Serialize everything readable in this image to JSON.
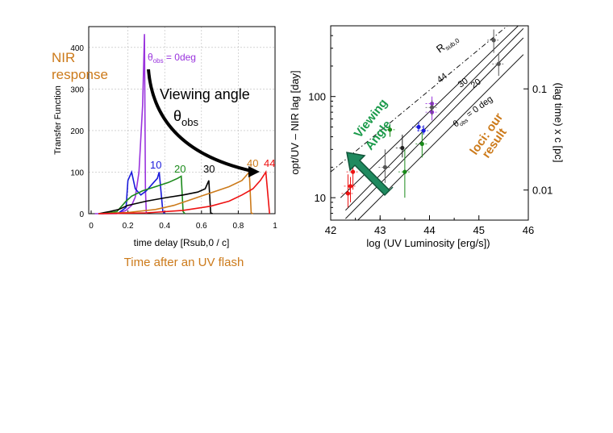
{
  "chart_data": [
    {
      "type": "line",
      "title": "",
      "ylabel": "Transfer Function",
      "xlabel": "time delay [Rsub,0 / c]",
      "xlim": [
        0,
        1
      ],
      "ylim": [
        0,
        450
      ],
      "x_ticks": [
        "0",
        "0.2",
        "0.4",
        "0.6",
        "0.8",
        "1"
      ],
      "y_ticks": [
        "0",
        "100",
        "200",
        "300",
        "400"
      ],
      "series": [
        {
          "name": "θobs = 0deg",
          "color": "#9933dd",
          "points": [
            [
              0.02,
              0
            ],
            [
              0.14,
              0
            ],
            [
              0.19,
              8
            ],
            [
              0.22,
              20
            ],
            [
              0.24,
              40
            ],
            [
              0.26,
              100
            ],
            [
              0.28,
              260
            ],
            [
              0.29,
              432
            ],
            [
              0.295,
              60
            ],
            [
              0.3,
              0
            ]
          ]
        },
        {
          "name": "10",
          "color": "#1a1adb",
          "points": [
            [
              0.05,
              0
            ],
            [
              0.15,
              2
            ],
            [
              0.19,
              15
            ],
            [
              0.2,
              80
            ],
            [
              0.22,
              100
            ],
            [
              0.24,
              60
            ],
            [
              0.27,
              45
            ],
            [
              0.3,
              55
            ],
            [
              0.34,
              75
            ],
            [
              0.36,
              85
            ],
            [
              0.37,
              100
            ],
            [
              0.39,
              5
            ],
            [
              0.4,
              0
            ]
          ]
        },
        {
          "name": "20",
          "color": "#1a8a1a",
          "points": [
            [
              0.06,
              0
            ],
            [
              0.14,
              5
            ],
            [
              0.19,
              30
            ],
            [
              0.22,
              42
            ],
            [
              0.28,
              55
            ],
            [
              0.35,
              65
            ],
            [
              0.42,
              75
            ],
            [
              0.47,
              85
            ],
            [
              0.49,
              90
            ],
            [
              0.5,
              5
            ],
            [
              0.51,
              0
            ]
          ]
        },
        {
          "name": "30",
          "color": "#000000",
          "points": [
            [
              0.04,
              0
            ],
            [
              0.1,
              5
            ],
            [
              0.15,
              10
            ],
            [
              0.2,
              20
            ],
            [
              0.3,
              30
            ],
            [
              0.4,
              38
            ],
            [
              0.5,
              45
            ],
            [
              0.58,
              52
            ],
            [
              0.62,
              60
            ],
            [
              0.64,
              80
            ],
            [
              0.65,
              2
            ],
            [
              0.66,
              0
            ]
          ]
        },
        {
          "name": "40",
          "color": "#cc7a1a",
          "points": [
            [
              0.04,
              0
            ],
            [
              0.2,
              3
            ],
            [
              0.35,
              10
            ],
            [
              0.45,
              20
            ],
            [
              0.55,
              35
            ],
            [
              0.65,
              50
            ],
            [
              0.75,
              65
            ],
            [
              0.82,
              80
            ],
            [
              0.86,
              100
            ],
            [
              0.87,
              2
            ],
            [
              0.88,
              0
            ]
          ]
        },
        {
          "name": "44",
          "color": "#ee1111",
          "points": [
            [
              0.04,
              0
            ],
            [
              0.3,
              2
            ],
            [
              0.5,
              8
            ],
            [
              0.65,
              18
            ],
            [
              0.75,
              30
            ],
            [
              0.82,
              45
            ],
            [
              0.88,
              60
            ],
            [
              0.92,
              80
            ],
            [
              0.95,
              100
            ],
            [
              0.97,
              0
            ]
          ]
        }
      ],
      "annotations": {
        "theta_label": "θ",
        "theta_sub": "obs",
        "theta_value": " = 0deg",
        "nir_line1": "NIR",
        "nir_line2": "response",
        "viewing_line1": "Viewing angle",
        "viewing_line2": "θ",
        "viewing_sub": "obs",
        "bottom_caption": "Time after an UV flash"
      },
      "colors": {
        "nir": "#cc7a1a",
        "caption": "#cc7a1a",
        "violet": "#9933dd"
      }
    },
    {
      "type": "scatter",
      "title": "",
      "xlabel": "log (UV Luminosity [erg/s])",
      "ylabel": "opt/UV – NIR lag [day]",
      "ylabel_right": "(lag time) x c [pc]",
      "xlim": [
        42,
        46
      ],
      "ylim_log": [
        6,
        500
      ],
      "x_ticks": [
        "42",
        "43",
        "44",
        "45",
        "46"
      ],
      "y_ticks": [
        "10",
        "100"
      ],
      "y_right_ticks": [
        "0.01",
        "0.1"
      ],
      "lines": [
        {
          "name": "R sub,0",
          "style": "dashdot",
          "x": [
            42,
            45.7
          ],
          "y": [
            18,
            560
          ]
        },
        {
          "name": "44",
          "x": [
            42.2,
            45.9
          ],
          "y": [
            10,
            560
          ]
        },
        {
          "name": "30",
          "x": [
            42.3,
            45.9
          ],
          "y": [
            7.5,
            470
          ]
        },
        {
          "name": "20",
          "x": [
            42.3,
            45.9
          ],
          "y": [
            6.2,
            380
          ]
        },
        {
          "name": "θobs = 0 deg",
          "x": [
            42.55,
            45.9
          ],
          "y": [
            6,
            260
          ]
        }
      ],
      "line_labels": {
        "rsub_main": "R",
        "rsub_sub": "sub,0",
        "l44": "44",
        "l30": "30",
        "l20": "20",
        "theta": "θ",
        "theta_sub": "obs",
        "theta_rest": " = 0 deg"
      },
      "points": [
        {
          "x": 42.35,
          "y": 11,
          "err": [
            8,
            17
          ],
          "color": "#ee1111"
        },
        {
          "x": 42.45,
          "y": 18,
          "err": [
            12,
            25
          ],
          "color": "#ee1111"
        },
        {
          "x": 42.4,
          "y": 13,
          "err": [
            9,
            16
          ],
          "color": "#ee1111"
        },
        {
          "x": 43.1,
          "y": 20,
          "err": [
            14,
            30
          ],
          "color": "#555555"
        },
        {
          "x": 43.45,
          "y": 31,
          "err": [
            25,
            42
          ],
          "color": "#222222"
        },
        {
          "x": 43.2,
          "y": 47,
          "err": [
            40,
            52
          ],
          "color": "#1a8a1a"
        },
        {
          "x": 43.5,
          "y": 18,
          "err": [
            10,
            30
          ],
          "color": "#1a8a1a"
        },
        {
          "x": 43.85,
          "y": 34,
          "err": [
            25,
            45
          ],
          "color": "#1a8a1a"
        },
        {
          "x": 43.78,
          "y": 50,
          "err": [
            45,
            56
          ],
          "color": "#1a1adb"
        },
        {
          "x": 43.88,
          "y": 46,
          "err": [
            42,
            52
          ],
          "color": "#1a1adb"
        },
        {
          "x": 44.05,
          "y": 70,
          "err": [
            58,
            82
          ],
          "color": "#9933dd"
        },
        {
          "x": 44.05,
          "y": 85,
          "err": [
            70,
            100
          ],
          "color": "#9933dd"
        },
        {
          "x": 44.05,
          "y": 78,
          "err": [
            65,
            92
          ],
          "color": "#555555"
        },
        {
          "x": 45.3,
          "y": 360,
          "err": [
            270,
            460
          ],
          "color": "#555555"
        },
        {
          "x": 45.4,
          "y": 210,
          "err": [
            160,
            270
          ],
          "color": "#555555"
        }
      ],
      "annotations": {
        "viewing_line1": "Viewing",
        "viewing_line2": "Angle",
        "loci_line1": "loci: our",
        "loci_line2": "result"
      },
      "colors": {
        "viewing": "#1a9a4a",
        "loci": "#cc7a1a",
        "arrow": "#1a7a5a"
      }
    }
  ]
}
